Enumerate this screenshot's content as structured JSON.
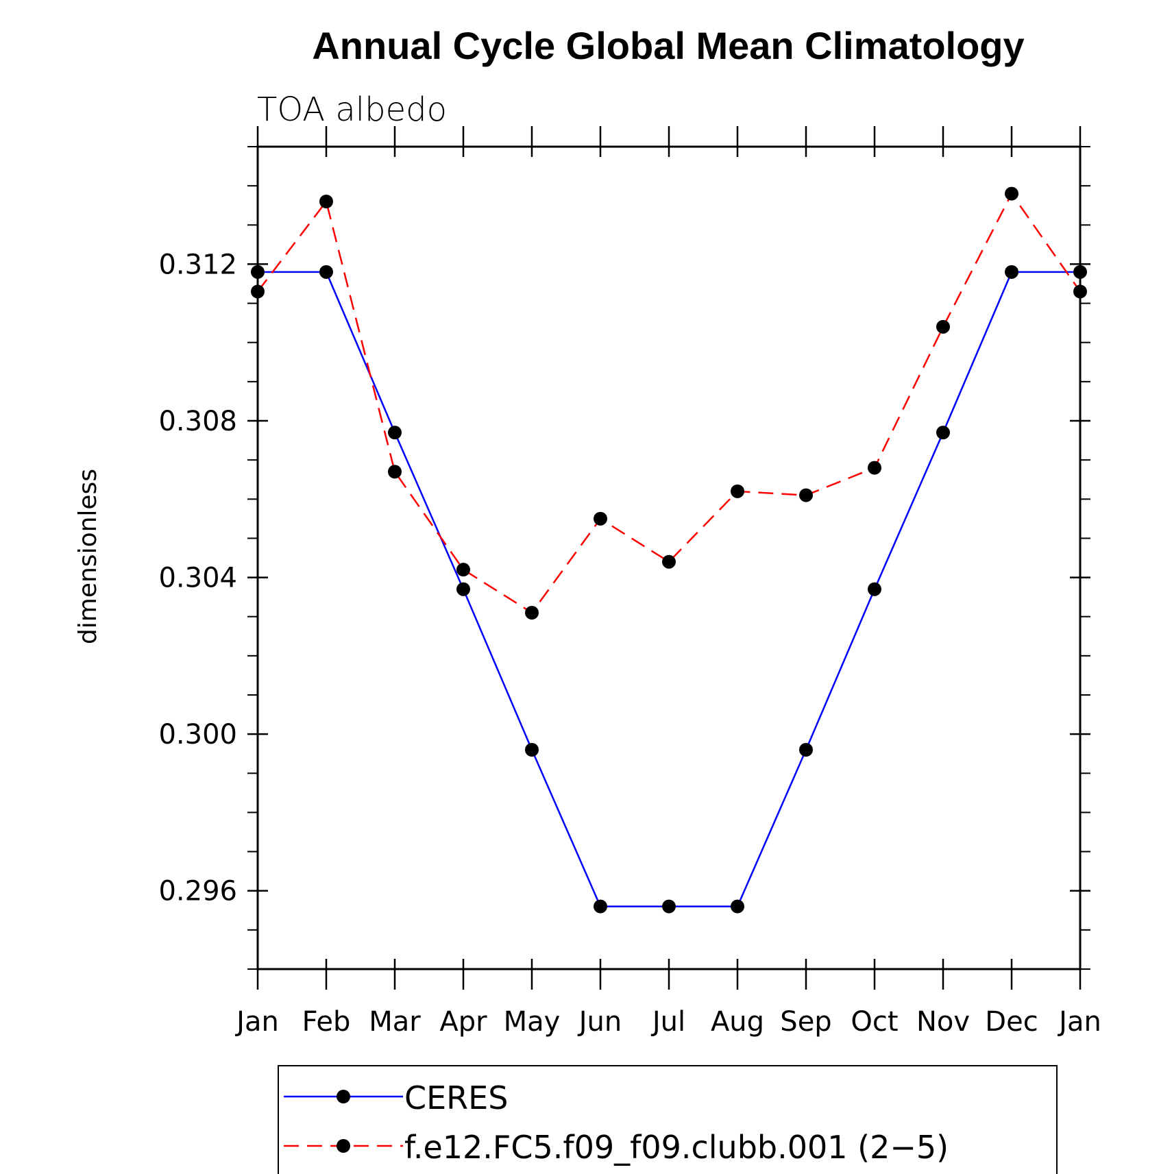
{
  "chart_data": {
    "type": "line",
    "title": "Annual Cycle Global Mean Climatology",
    "subtitle": "TOA albedo",
    "xlabel": "",
    "ylabel": "dimensionless",
    "categories": [
      "Jan",
      "Feb",
      "Mar",
      "Apr",
      "May",
      "Jun",
      "Jul",
      "Aug",
      "Sep",
      "Oct",
      "Nov",
      "Dec",
      "Jan"
    ],
    "ylim": [
      0.294,
      0.315
    ],
    "yticks": [
      0.296,
      0.3,
      0.304,
      0.308,
      0.312
    ],
    "ytick_labels": [
      "0.296",
      "0.300",
      "0.304",
      "0.308",
      "0.312"
    ],
    "series": [
      {
        "name": "CERES",
        "color": "#0000ff",
        "dash": "solid",
        "values": [
          0.3118,
          0.3118,
          0.3077,
          0.3037,
          0.2996,
          0.2956,
          0.2956,
          0.2956,
          0.2996,
          0.3037,
          0.3077,
          0.3118,
          0.3118
        ]
      },
      {
        "name": "f.e12.FC5.f09_f09.clubb.001 (2−5)",
        "color": "#ff0000",
        "dash": "dashed",
        "values": [
          0.3113,
          0.3136,
          0.3067,
          0.3042,
          0.3031,
          0.3055,
          0.3044,
          0.3062,
          0.3061,
          0.3068,
          0.3104,
          0.3138,
          0.3113
        ]
      }
    ],
    "legend_position": "bottom"
  }
}
